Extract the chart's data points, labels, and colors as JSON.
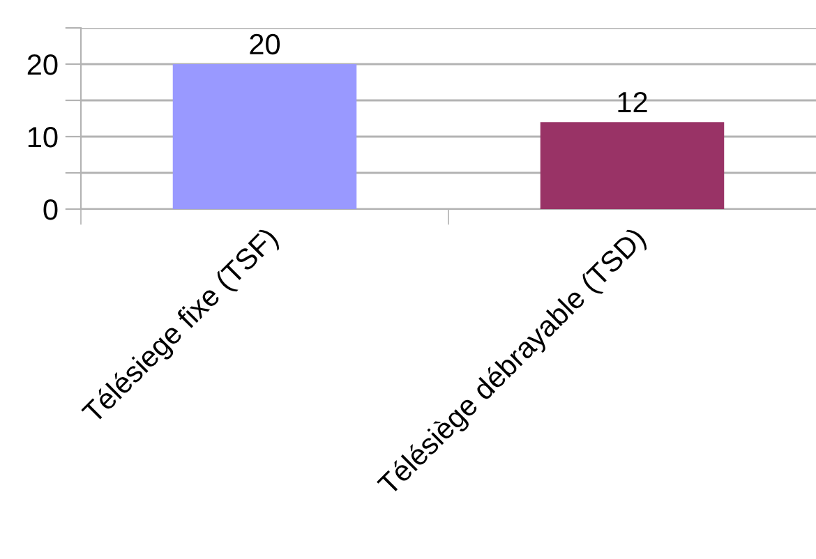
{
  "chart_data": {
    "type": "bar",
    "categories": [
      "Télésiege fixe (TSF)",
      "Télésiège débrayable (TSD)"
    ],
    "values": [
      20,
      12
    ],
    "colors": [
      "#9999ff",
      "#993366"
    ],
    "ylim": [
      0,
      25
    ],
    "yticks": [
      0,
      {
        "value": 5,
        "label": null
      },
      10,
      {
        "value": 15,
        "label": null
      },
      20,
      {
        "value": 25,
        "label": null
      }
    ],
    "grid": "y",
    "data_labels": true
  }
}
